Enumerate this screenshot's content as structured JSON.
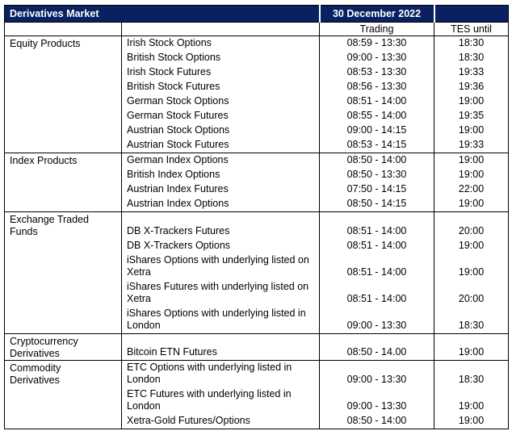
{
  "colors": {
    "banner_bg": "#0a2060",
    "banner_text": "#ffffff",
    "grid": "#000000"
  },
  "header": {
    "title": "Derivatives Market",
    "date": "30 December 2022",
    "trading_col": "Trading",
    "tes_col": "TES until"
  },
  "sections": [
    {
      "category": "Equity Products",
      "rows": [
        {
          "product": "Irish Stock Options",
          "trading": "08:59 - 13:30",
          "tes": "18:30"
        },
        {
          "product": "British Stock Options",
          "trading": "09:00 - 13:30",
          "tes": "18:30"
        },
        {
          "product": "Irish Stock Futures",
          "trading": "08:53 - 13:30",
          "tes": "19:33"
        },
        {
          "product": "British Stock Futures",
          "trading": "08:56 - 13:30",
          "tes": "19:36"
        },
        {
          "product": "German Stock Options",
          "trading": "08:51 - 14:00",
          "tes": "19:00"
        },
        {
          "product": "German Stock Futures",
          "trading": "08:55 - 14:00",
          "tes": "19:35"
        },
        {
          "product": "Austrian Stock Options",
          "trading": "09:00 - 14:15",
          "tes": "19:00"
        },
        {
          "product": "Austrian Stock Futures",
          "trading": "08:53 - 14:15",
          "tes": "19:33"
        }
      ]
    },
    {
      "category": "Index Products",
      "rows": [
        {
          "product": "German Index Options",
          "trading": "08:50 - 14:00",
          "tes": "19:00"
        },
        {
          "product": "British Index Options",
          "trading": "08:50 - 13:30",
          "tes": "19:00"
        },
        {
          "product": "Austrian Index Futures",
          "trading": "07:50 - 14:15",
          "tes": "22:00"
        },
        {
          "product": "Austrian Index Options",
          "trading": "08:50 - 14:15",
          "tes": "19:00"
        }
      ]
    },
    {
      "category": "Exchange Traded Funds",
      "rows": [
        {
          "product": "DB X-Trackers Futures",
          "trading": "08:51 - 14:00",
          "tes": "20:00"
        },
        {
          "product": "DB X-Trackers Options",
          "trading": "08:51 - 14:00",
          "tes": "19:00"
        },
        {
          "product": "iShares Options with underlying listed on Xetra",
          "trading": "08:51 - 14:00",
          "tes": "19:00"
        },
        {
          "product": "iShares Futures with underlying listed on Xetra",
          "trading": "08:51 - 14:00",
          "tes": "20:00"
        },
        {
          "product": "iShares Options with underlying listed in London",
          "trading": "09:00 - 13:30",
          "tes": "18:30"
        }
      ]
    },
    {
      "category": "Cryptocurrency Derivatives",
      "rows": [
        {
          "product": "Bitcoin ETN Futures",
          "trading": "08:50 - 14.00",
          "tes": "19:00"
        }
      ]
    },
    {
      "category": "Commodity Derivatives",
      "rows": [
        {
          "product": "ETC Options with underlying listed in London",
          "trading": "09:00 - 13:30",
          "tes": "18:30"
        },
        {
          "product": "ETC Futures with underlying listed in London",
          "trading": "09:00 - 13:30",
          "tes": "19:00"
        },
        {
          "product": "Xetra-Gold Futures/Options",
          "trading": "08:50 - 14:00",
          "tes": "19:00"
        }
      ]
    }
  ]
}
